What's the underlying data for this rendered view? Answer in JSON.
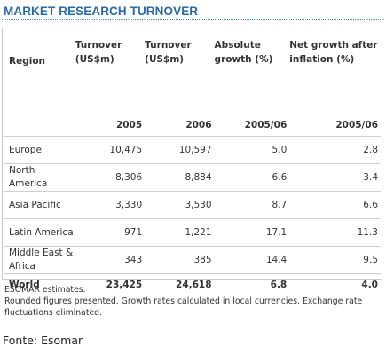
{
  "title": "MARKET RESEARCH TURNOVER",
  "table": {
    "headers": {
      "region": "Region",
      "turnover_2005": "Turnover (US$m)",
      "turnover_2006": "Turnover (US$m)",
      "absolute_growth": "Absolute growth (%)",
      "net_growth": "Net growth after inflation (%)"
    },
    "years": [
      "2005",
      "2006",
      "2005/06",
      "2005/06"
    ],
    "rows": [
      {
        "region": "Europe",
        "t2005": "10,475",
        "t2006": "10,597",
        "abs": "5.0",
        "net": "2.8"
      },
      {
        "region": "North America",
        "t2005": "8,306",
        "t2006": "8,884",
        "abs": "6.6",
        "net": "3.4"
      },
      {
        "region": "Asia Pacific",
        "t2005": "3,330",
        "t2006": "3,530",
        "abs": "8.7",
        "net": "6.6"
      },
      {
        "region": "Latin America",
        "t2005": "971",
        "t2006": "1,221",
        "abs": "17.1",
        "net": "11.3"
      },
      {
        "region": "Middle East & Africa",
        "t2005": "343",
        "t2006": "385",
        "abs": "14.4",
        "net": "9.5"
      }
    ],
    "total": {
      "region": "World",
      "t2005": "23,425",
      "t2006": "24,618",
      "abs": "6.8",
      "net": "4.0"
    }
  },
  "notes": [
    "ESOMAR estimates.",
    "Rounded figures presented. Growth rates calculated in local currencies. Exchange rate fluctuations eliminated."
  ],
  "source": "Fonte: Esomar",
  "colors": {
    "title": "#2a6aa5",
    "rule": "#5a8fc4",
    "border": "#c9c9c9"
  }
}
